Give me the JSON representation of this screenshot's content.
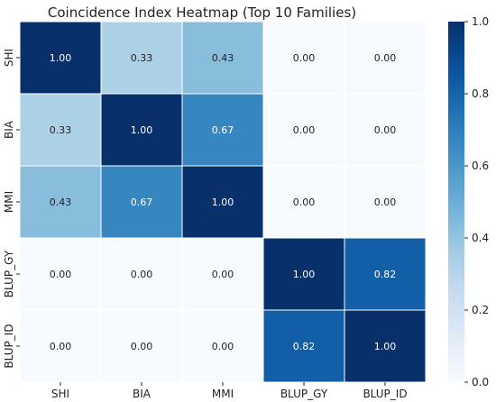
{
  "chart_data": {
    "type": "heatmap",
    "title": "Coincidence Index Heatmap (Top 10 Families)",
    "x_categories": [
      "SHI",
      "BIA",
      "MMI",
      "BLUP_GY",
      "BLUP_ID"
    ],
    "y_categories": [
      "SHI",
      "BIA",
      "MMI",
      "BLUP_GY",
      "BLUP_ID"
    ],
    "values": [
      [
        1.0,
        0.33,
        0.43,
        0.0,
        0.0
      ],
      [
        0.33,
        1.0,
        0.67,
        0.0,
        0.0
      ],
      [
        0.43,
        0.67,
        1.0,
        0.0,
        0.0
      ],
      [
        0.0,
        0.0,
        0.0,
        1.0,
        0.82
      ],
      [
        0.0,
        0.0,
        0.0,
        0.82,
        1.0
      ]
    ],
    "cell_labels": [
      [
        "1.00",
        "0.33",
        "0.43",
        "0.00",
        "0.00"
      ],
      [
        "0.33",
        "1.00",
        "0.67",
        "0.00",
        "0.00"
      ],
      [
        "0.43",
        "0.67",
        "1.00",
        "0.00",
        "0.00"
      ],
      [
        "0.00",
        "0.00",
        "0.00",
        "1.00",
        "0.82"
      ],
      [
        "0.00",
        "0.00",
        "0.00",
        "0.82",
        "1.00"
      ]
    ],
    "colorbar": {
      "range": [
        0.0,
        1.0
      ],
      "ticks": [
        0.0,
        0.2,
        0.4,
        0.6,
        0.8,
        1.0
      ],
      "tick_labels": [
        "0.0",
        "0.2",
        "0.4",
        "0.6",
        "0.8",
        "1.0"
      ]
    },
    "colormap": "Blues",
    "colormap_stops": [
      "#f7fbff",
      "#deebf7",
      "#c6dbef",
      "#9ecae1",
      "#6baed6",
      "#4292c6",
      "#2171b5",
      "#08519c",
      "#08306b"
    ],
    "cell_border_color": "#ffffff",
    "xlabel": "",
    "ylabel": ""
  }
}
